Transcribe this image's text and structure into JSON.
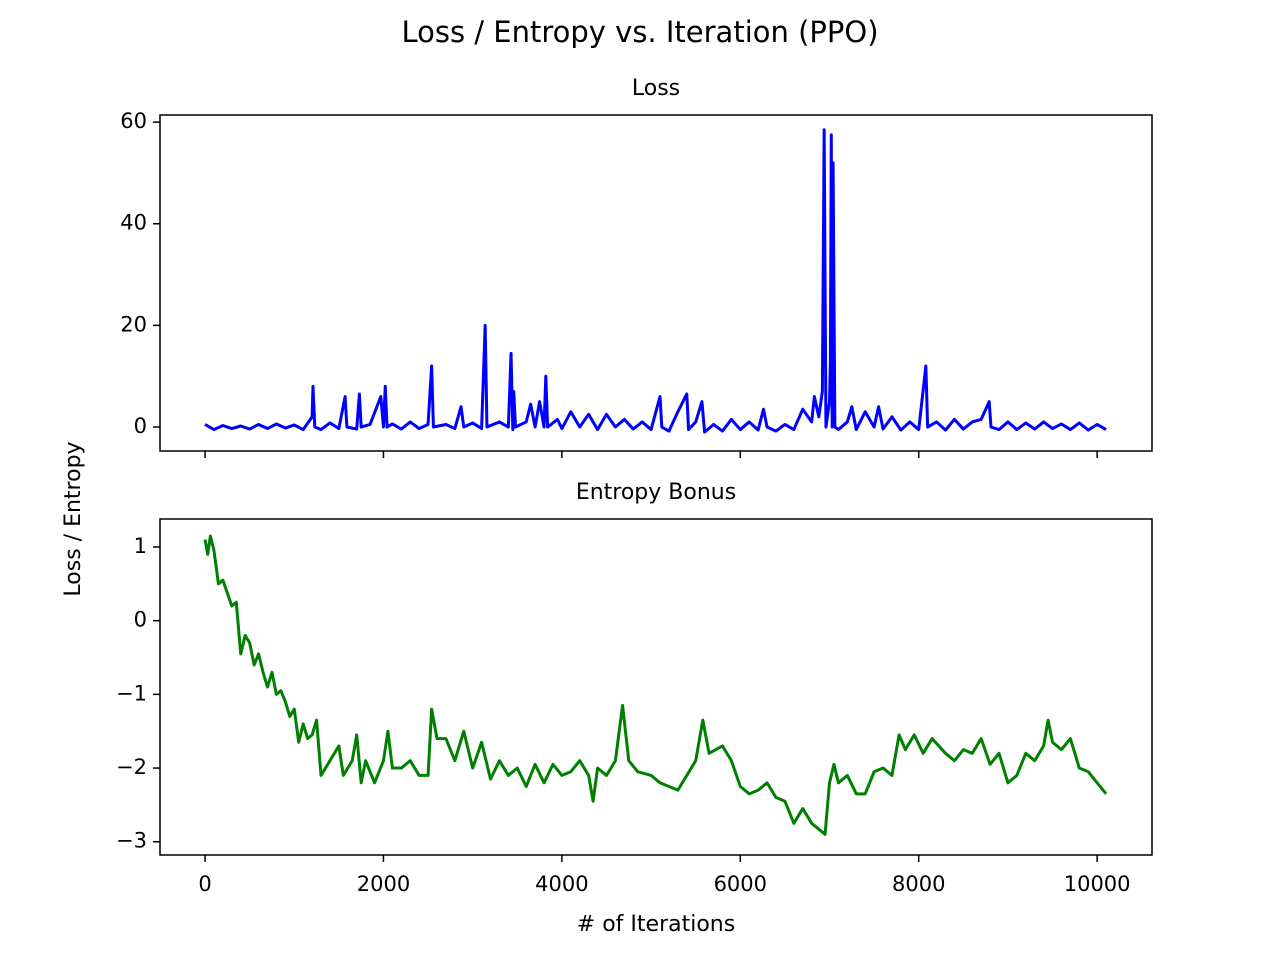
{
  "figure": {
    "title": "Loss / Entropy vs. Iteration (PPO)",
    "ylabel": "Loss / Entropy"
  },
  "chart_data": [
    {
      "type": "line",
      "title": "Loss",
      "color": "#0000ff",
      "x": [
        0,
        100,
        200,
        300,
        400,
        500,
        600,
        700,
        800,
        900,
        1000,
        1100,
        1200,
        1210,
        1230,
        1300,
        1400,
        1500,
        1570,
        1590,
        1700,
        1730,
        1750,
        1850,
        1970,
        2000,
        2020,
        2040,
        2100,
        2200,
        2300,
        2400,
        2500,
        2540,
        2560,
        2700,
        2800,
        2870,
        2900,
        3000,
        3100,
        3140,
        3160,
        3300,
        3400,
        3430,
        3450,
        3460,
        3480,
        3600,
        3650,
        3700,
        3750,
        3800,
        3820,
        3840,
        3950,
        4000,
        4100,
        4200,
        4300,
        4400,
        4500,
        4600,
        4700,
        4800,
        4900,
        5000,
        5100,
        5120,
        5200,
        5300,
        5400,
        5420,
        5500,
        5570,
        5600,
        5700,
        5800,
        5900,
        6000,
        6100,
        6200,
        6260,
        6300,
        6400,
        6500,
        6600,
        6700,
        6800,
        6830,
        6880,
        6920,
        6940,
        6960,
        7000,
        7010,
        7020,
        7030,
        7040,
        7060,
        7100,
        7200,
        7250,
        7300,
        7400,
        7500,
        7550,
        7600,
        7700,
        7800,
        7900,
        8000,
        8080,
        8100,
        8200,
        8300,
        8400,
        8500,
        8600,
        8700,
        8790,
        8810,
        8900,
        9000,
        9100,
        9200,
        9300,
        9400,
        9500,
        9600,
        9700,
        9800,
        9900,
        10000,
        10100
      ],
      "values": [
        0.5,
        -0.5,
        0.3,
        -0.3,
        0.2,
        -0.4,
        0.5,
        -0.3,
        0.6,
        -0.2,
        0.4,
        -0.5,
        2,
        8,
        0,
        -0.5,
        0.8,
        -0.3,
        6,
        0,
        -0.4,
        6.5,
        0,
        0.5,
        6,
        0,
        8,
        0,
        0.6,
        -0.4,
        1,
        -0.3,
        0.5,
        12,
        0,
        0.5,
        -0.3,
        4,
        0,
        0.8,
        -0.3,
        20,
        0,
        1,
        0,
        14.5,
        -0.5,
        7,
        0,
        1,
        4.5,
        0,
        5,
        0,
        10,
        0,
        1.5,
        -0.3,
        3,
        0,
        2.5,
        -0.5,
        2.5,
        0,
        1.5,
        -0.4,
        1,
        -0.5,
        6,
        0,
        -0.8,
        3,
        6.5,
        -0.5,
        1,
        5,
        -1,
        0.5,
        -0.8,
        1.5,
        -0.5,
        1,
        -0.6,
        3.5,
        0,
        -0.8,
        0.5,
        -0.5,
        3.5,
        1,
        6,
        2,
        7,
        58.5,
        0,
        5,
        13,
        57.5,
        0,
        52,
        0,
        -0.5,
        1,
        4,
        -0.5,
        3,
        0,
        4,
        -0.4,
        2,
        -0.6,
        1,
        -0.5,
        12,
        0,
        1,
        -0.6,
        1.5,
        -0.4,
        1,
        1.5,
        5,
        0,
        -0.5,
        1,
        -0.5,
        0.8,
        -0.4,
        1,
        -0.3,
        0.6,
        -0.5,
        0.8,
        -0.6,
        0.5,
        -0.5
      ],
      "xlim": [
        -505,
        10615
      ],
      "xticks": [
        0,
        2000,
        4000,
        6000,
        8000,
        10000
      ],
      "ylim": [
        -4.72,
        61.4
      ],
      "yticks": [
        0,
        20,
        40,
        60
      ]
    },
    {
      "type": "line",
      "title": "Entropy Bonus",
      "color": "#008000",
      "xlabel": "# of Iterations",
      "x": [
        0,
        30,
        60,
        100,
        150,
        200,
        300,
        350,
        400,
        450,
        500,
        550,
        600,
        650,
        700,
        750,
        800,
        850,
        900,
        950,
        1000,
        1050,
        1100,
        1150,
        1200,
        1250,
        1300,
        1400,
        1500,
        1550,
        1650,
        1700,
        1750,
        1800,
        1900,
        2000,
        2050,
        2100,
        2200,
        2300,
        2400,
        2500,
        2540,
        2600,
        2700,
        2800,
        2900,
        3000,
        3100,
        3200,
        3300,
        3400,
        3500,
        3600,
        3700,
        3800,
        3900,
        4000,
        4100,
        4200,
        4300,
        4350,
        4400,
        4500,
        4600,
        4680,
        4750,
        4850,
        5000,
        5100,
        5200,
        5300,
        5400,
        5500,
        5580,
        5650,
        5800,
        5900,
        6000,
        6100,
        6200,
        6300,
        6400,
        6500,
        6600,
        6700,
        6800,
        6900,
        6950,
        7000,
        7050,
        7100,
        7200,
        7300,
        7400,
        7500,
        7600,
        7700,
        7780,
        7850,
        7950,
        8050,
        8150,
        8300,
        8400,
        8500,
        8600,
        8700,
        8800,
        8900,
        9000,
        9100,
        9200,
        9300,
        9400,
        9450,
        9500,
        9600,
        9700,
        9800,
        9900,
        10000,
        10100
      ],
      "values": [
        1.1,
        0.9,
        1.15,
        0.95,
        0.5,
        0.55,
        0.2,
        0.25,
        -0.45,
        -0.2,
        -0.3,
        -0.6,
        -0.45,
        -0.7,
        -0.9,
        -0.7,
        -1.0,
        -0.95,
        -1.1,
        -1.3,
        -1.2,
        -1.65,
        -1.4,
        -1.6,
        -1.55,
        -1.35,
        -2.1,
        -1.9,
        -1.7,
        -2.1,
        -1.9,
        -1.55,
        -2.2,
        -1.9,
        -2.2,
        -1.9,
        -1.5,
        -2.0,
        -2.0,
        -1.9,
        -2.1,
        -2.1,
        -1.2,
        -1.6,
        -1.6,
        -1.9,
        -1.5,
        -2.0,
        -1.65,
        -2.15,
        -1.9,
        -2.1,
        -2.0,
        -2.25,
        -1.95,
        -2.2,
        -1.95,
        -2.1,
        -2.05,
        -1.9,
        -2.1,
        -2.45,
        -2.0,
        -2.1,
        -1.9,
        -1.15,
        -1.9,
        -2.05,
        -2.1,
        -2.2,
        -2.25,
        -2.3,
        -2.1,
        -1.9,
        -1.35,
        -1.8,
        -1.7,
        -1.9,
        -2.25,
        -2.35,
        -2.3,
        -2.2,
        -2.4,
        -2.45,
        -2.75,
        -2.55,
        -2.75,
        -2.85,
        -2.9,
        -2.2,
        -1.95,
        -2.2,
        -2.1,
        -2.35,
        -2.35,
        -2.05,
        -2.0,
        -2.1,
        -1.55,
        -1.75,
        -1.55,
        -1.8,
        -1.6,
        -1.8,
        -1.9,
        -1.75,
        -1.8,
        -1.6,
        -1.95,
        -1.8,
        -2.2,
        -2.1,
        -1.8,
        -1.9,
        -1.7,
        -1.35,
        -1.65,
        -1.75,
        -1.6,
        -2.0,
        -2.05,
        -2.2,
        -2.35
      ],
      "xlim": [
        -505,
        10615
      ],
      "xticks": [
        0,
        2000,
        4000,
        6000,
        8000,
        10000
      ],
      "ylim": [
        -3.18,
        1.38
      ],
      "yticks": [
        1,
        0,
        {
          "value": -1,
          "label": "−1"
        },
        {
          "value": -2,
          "label": "−2"
        },
        {
          "value": -3,
          "label": "−3"
        }
      ]
    }
  ]
}
